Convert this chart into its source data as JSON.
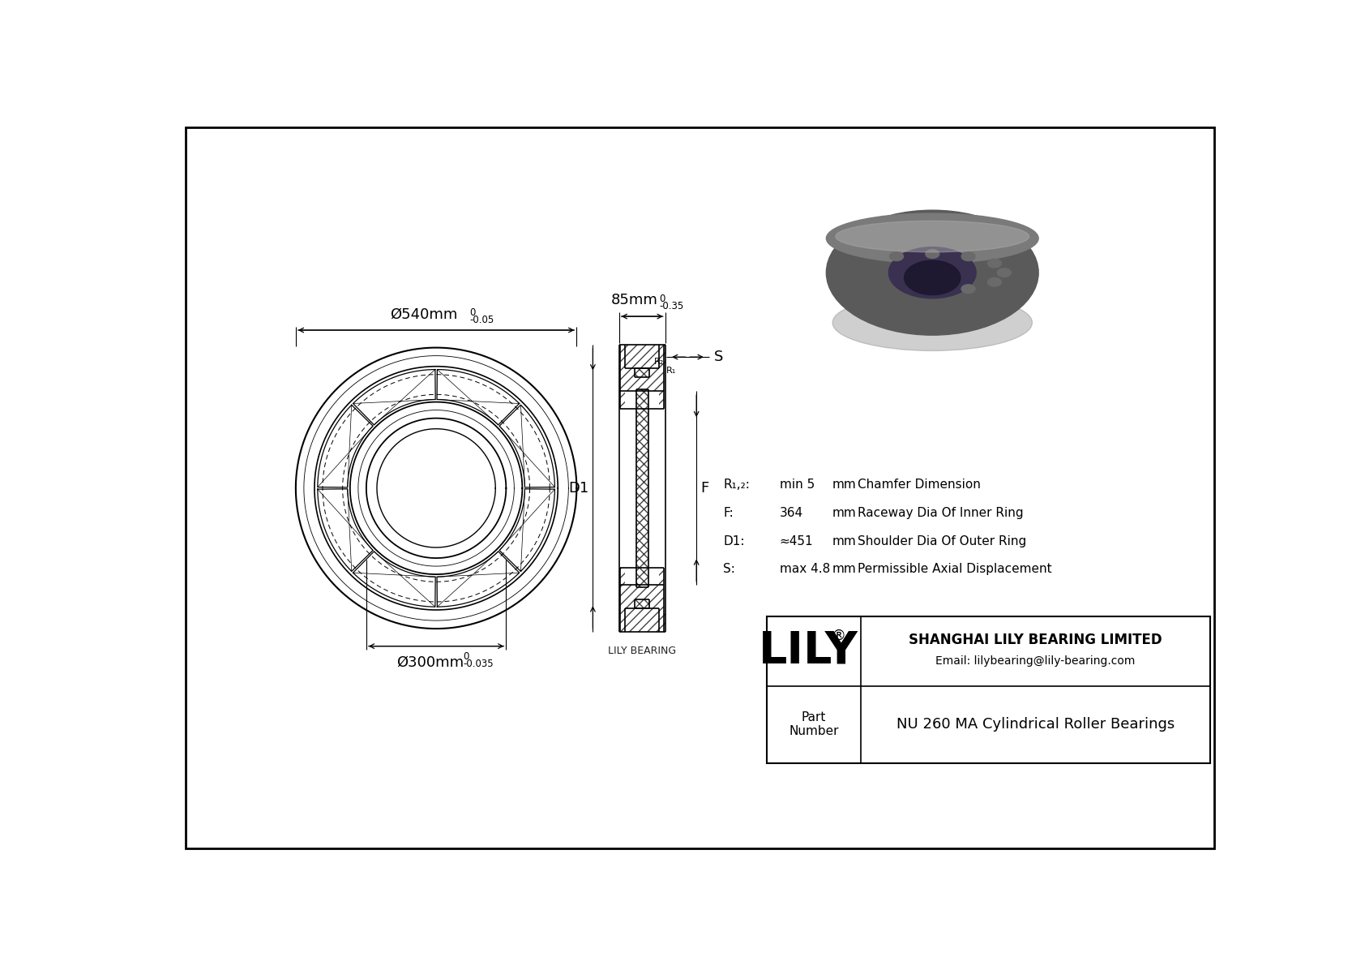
{
  "bg_color": "#ffffff",
  "line_color": "#000000",
  "brand": "LILY",
  "brand_reg": "®",
  "watermark": "LILY BEARING",
  "company": "SHANGHAI LILY BEARING LIMITED",
  "email": "Email: lilybearing@lily-bearing.com",
  "part_number": "NU 260 MA Cylindrical Roller Bearings",
  "dim_outer": "Ø540mm",
  "dim_outer_tol_top": "0",
  "dim_outer_tol_bot": "-0.05",
  "dim_inner": "Ø300mm",
  "dim_inner_tol_top": "0",
  "dim_inner_tol_bot": "-0.035",
  "dim_width": "85mm",
  "dim_width_tol_top": "0",
  "dim_width_tol_bot": "-0.35",
  "label_D1": "D1",
  "label_F": "F",
  "label_S": "S",
  "label_R1": "R₁",
  "label_R2": "R₂",
  "spec_R12_label": "R₁,₂:",
  "spec_R12_val": "min 5",
  "spec_R12_unit": "mm",
  "spec_R12_desc": "Chamfer Dimension",
  "spec_F_label": "F:",
  "spec_F_val": "364",
  "spec_F_unit": "mm",
  "spec_F_desc": "Raceway Dia Of Inner Ring",
  "spec_D1_label": "D1:",
  "spec_D1_val": "≈451",
  "spec_D1_unit": "mm",
  "spec_D1_desc": "Shoulder Dia Of Outer Ring",
  "spec_S_label": "S:",
  "spec_S_val": "max 4.8",
  "spec_S_unit": "mm",
  "spec_S_desc": "Permissible Axial Displacement"
}
